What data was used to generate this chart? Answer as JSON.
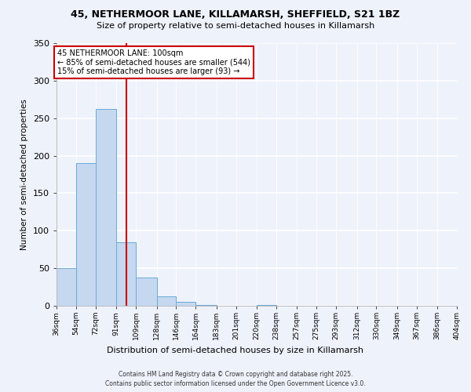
{
  "title1": "45, NETHERMOOR LANE, KILLAMARSH, SHEFFIELD, S21 1BZ",
  "title2": "Size of property relative to semi-detached houses in Killamarsh",
  "xlabel": "Distribution of semi-detached houses by size in Killamarsh",
  "ylabel": "Number of semi-detached properties",
  "bar_values": [
    50,
    190,
    262,
    85,
    38,
    13,
    5,
    1,
    0,
    0,
    1,
    0,
    0,
    0,
    0,
    0,
    0,
    0,
    0,
    0
  ],
  "bin_edges": [
    36,
    54,
    72,
    91,
    109,
    128,
    146,
    164,
    183,
    201,
    220,
    238,
    257,
    275,
    293,
    312,
    330,
    349,
    367,
    386,
    404
  ],
  "x_tick_labels": [
    "36sqm",
    "54sqm",
    "72sqm",
    "91sqm",
    "109sqm",
    "128sqm",
    "146sqm",
    "164sqm",
    "183sqm",
    "201sqm",
    "220sqm",
    "238sqm",
    "257sqm",
    "275sqm",
    "293sqm",
    "312sqm",
    "330sqm",
    "349sqm",
    "367sqm",
    "386sqm",
    "404sqm"
  ],
  "bar_color": "#c5d8f0",
  "bar_edge_color": "#6aaad4",
  "vline_x": 100,
  "vline_color": "#cc0000",
  "annotation_title": "45 NETHERMOOR LANE: 100sqm",
  "annotation_line1": "← 85% of semi-detached houses are smaller (544)",
  "annotation_line2": "15% of semi-detached houses are larger (93) →",
  "annotation_box_color": "#ffffff",
  "annotation_box_edge": "#cc0000",
  "ylim": [
    0,
    350
  ],
  "yticks": [
    0,
    50,
    100,
    150,
    200,
    250,
    300,
    350
  ],
  "footer1": "Contains HM Land Registry data © Crown copyright and database right 2025.",
  "footer2": "Contains public sector information licensed under the Open Government Licence v3.0.",
  "bg_color": "#eef2fb"
}
